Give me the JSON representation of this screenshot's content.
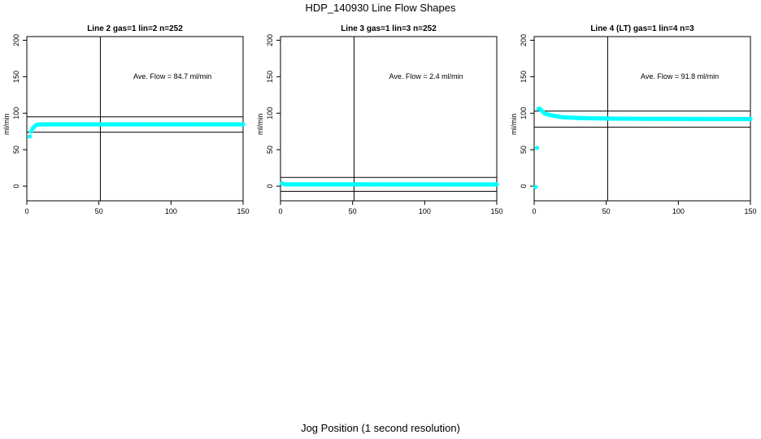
{
  "title": "HDP_140930  Line Flow Shapes",
  "xlabel": "Jog Position (1 second resolution)",
  "point_color": "#00ffff",
  "chart_data": [
    {
      "type": "scatter",
      "title": "Line 2 gas=1 lin=2 n=252",
      "ylabel": "ml/min",
      "annotation": "Ave. Flow =  84.7  ml/min",
      "xlim": [
        0,
        150
      ],
      "ylim": [
        -20,
        205
      ],
      "xticks": [
        0,
        50,
        100,
        150
      ],
      "yticks": [
        0,
        50,
        100,
        150,
        200
      ],
      "vline": 51,
      "hlines": [
        95,
        74
      ],
      "series": [
        {
          "x": [
            2,
            3,
            4,
            5,
            6,
            7,
            8,
            9,
            10,
            12,
            150
          ],
          "y": [
            68,
            75,
            79,
            81,
            83,
            84,
            84.5,
            84.7,
            84.7,
            84.7,
            84.7
          ]
        }
      ]
    },
    {
      "type": "scatter",
      "title": "Line 3 gas=1 lin=3 n=252",
      "ylabel": "ml/min",
      "annotation": "Ave. Flow =  2.4  ml/min",
      "xlim": [
        0,
        150
      ],
      "ylim": [
        -20,
        205
      ],
      "xticks": [
        0,
        50,
        100,
        150
      ],
      "yticks": [
        0,
        50,
        100,
        150,
        200
      ],
      "vline": 51,
      "hlines": [
        12,
        -7
      ],
      "series": [
        {
          "x": [
            1,
            2,
            3,
            150
          ],
          "y": [
            4,
            3,
            2.5,
            2.4
          ]
        }
      ]
    },
    {
      "type": "scatter",
      "title": "Line 4 (LT) gas=1 lin=4 n=3",
      "ylabel": "ml/min",
      "annotation": "Ave. Flow =  91.8  ml/min",
      "xlim": [
        0,
        150
      ],
      "ylim": [
        -20,
        205
      ],
      "xticks": [
        0,
        50,
        100,
        150
      ],
      "yticks": [
        0,
        50,
        100,
        150,
        200
      ],
      "vline": 51,
      "hlines": [
        103,
        81
      ],
      "series": [
        {
          "x": [
            1,
            3,
            4,
            5,
            6,
            7,
            8,
            10,
            12,
            15,
            18,
            20,
            25,
            30,
            40,
            60,
            80,
            100,
            150
          ],
          "y": [
            -1,
            106,
            106,
            104,
            102,
            100,
            99,
            98,
            97,
            96,
            95,
            94.5,
            94,
            93.5,
            93,
            92.5,
            92.3,
            92.2,
            92
          ]
        }
      ]
    }
  ]
}
